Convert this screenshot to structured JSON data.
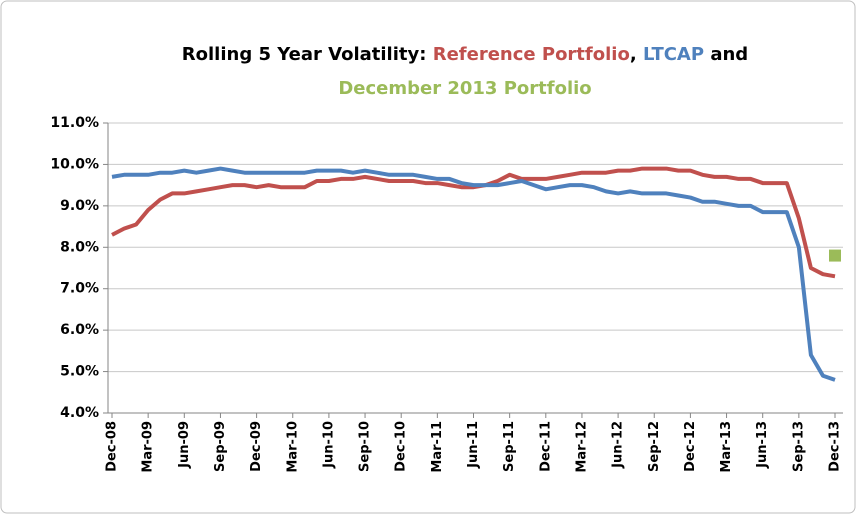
{
  "chart_data": {
    "type": "line",
    "title": "Rolling 5 Year Volatility:",
    "title_joiners": [
      ",",
      "and"
    ],
    "categories": [
      "Dec-08",
      null,
      null,
      "Mar-09",
      null,
      null,
      "Jun-09",
      null,
      null,
      "Sep-09",
      null,
      null,
      "Dec-09",
      null,
      null,
      "Mar-10",
      null,
      null,
      "Jun-10",
      null,
      null,
      "Sep-10",
      null,
      null,
      "Dec-10",
      null,
      null,
      "Mar-11",
      null,
      null,
      "Jun-11",
      null,
      null,
      "Sep-11",
      null,
      null,
      "Dec-11",
      null,
      null,
      "Mar-12",
      null,
      null,
      "Jun-12",
      null,
      null,
      "Sep-12",
      null,
      null,
      "Dec-12",
      null,
      null,
      "Mar-13",
      null,
      null,
      "Jun-13",
      null,
      null,
      "Sep-13",
      null,
      null,
      "Dec-13"
    ],
    "series": [
      {
        "name": "Reference Portfolio",
        "color": "#c0504d",
        "values": [
          8.3,
          8.45,
          8.55,
          8.9,
          9.15,
          9.3,
          9.3,
          9.35,
          9.4,
          9.45,
          9.5,
          9.5,
          9.45,
          9.5,
          9.45,
          9.45,
          9.45,
          9.6,
          9.6,
          9.65,
          9.65,
          9.7,
          9.65,
          9.6,
          9.6,
          9.6,
          9.55,
          9.55,
          9.5,
          9.45,
          9.45,
          9.5,
          9.6,
          9.75,
          9.65,
          9.65,
          9.65,
          9.7,
          9.75,
          9.8,
          9.8,
          9.8,
          9.85,
          9.85,
          9.9,
          9.9,
          9.9,
          9.85,
          9.85,
          9.75,
          9.7,
          9.7,
          9.65,
          9.65,
          9.55,
          9.55,
          9.55,
          8.7,
          7.5,
          7.35,
          7.3
        ]
      },
      {
        "name": "LTCAP",
        "color": "#4f81bd",
        "values": [
          9.7,
          9.75,
          9.75,
          9.75,
          9.8,
          9.8,
          9.85,
          9.8,
          9.85,
          9.9,
          9.85,
          9.8,
          9.8,
          9.8,
          9.8,
          9.8,
          9.8,
          9.85,
          9.85,
          9.85,
          9.8,
          9.85,
          9.8,
          9.75,
          9.75,
          9.75,
          9.7,
          9.65,
          9.65,
          9.55,
          9.5,
          9.5,
          9.5,
          9.55,
          9.6,
          9.5,
          9.4,
          9.45,
          9.5,
          9.5,
          9.45,
          9.35,
          9.3,
          9.35,
          9.3,
          9.3,
          9.3,
          9.25,
          9.2,
          9.1,
          9.1,
          9.05,
          9.0,
          9.0,
          8.85,
          8.85,
          8.85,
          8.0,
          5.4,
          4.9,
          4.8
        ]
      },
      {
        "name": "December 2013 Portfolio",
        "color": "#9bbb59",
        "marker": "square",
        "values": [
          null,
          null,
          null,
          null,
          null,
          null,
          null,
          null,
          null,
          null,
          null,
          null,
          null,
          null,
          null,
          null,
          null,
          null,
          null,
          null,
          null,
          null,
          null,
          null,
          null,
          null,
          null,
          null,
          null,
          null,
          null,
          null,
          null,
          null,
          null,
          null,
          null,
          null,
          null,
          null,
          null,
          null,
          null,
          null,
          null,
          null,
          null,
          null,
          null,
          null,
          null,
          null,
          null,
          null,
          null,
          null,
          null,
          null,
          null,
          null,
          7.8
        ]
      }
    ],
    "ylim": [
      4,
      11
    ],
    "yticks": [
      {
        "value": 4,
        "label": "4.0%"
      },
      {
        "value": 5,
        "label": "5.0%"
      },
      {
        "value": 6,
        "label": "6.0%"
      },
      {
        "value": 7,
        "label": "7.0%"
      },
      {
        "value": 8,
        "label": "8.0%"
      },
      {
        "value": 9,
        "label": "9.0%"
      },
      {
        "value": 10,
        "label": "10.0%"
      },
      {
        "value": 11,
        "label": "11.0%"
      }
    ],
    "grid": true
  }
}
